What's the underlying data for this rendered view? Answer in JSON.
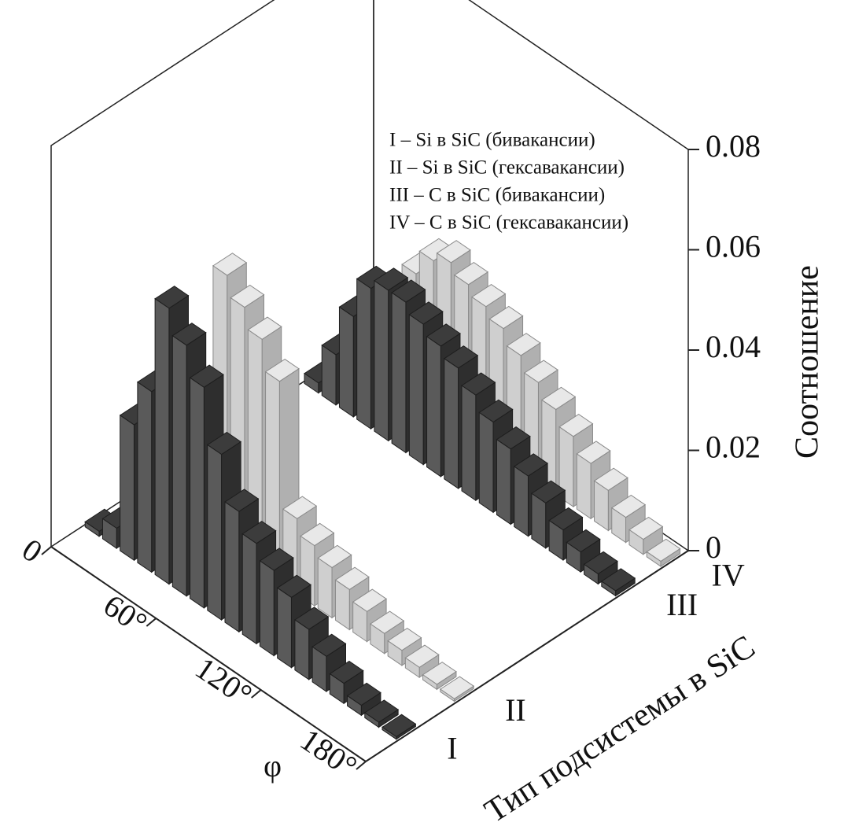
{
  "chart_data": {
    "type": "bar3d",
    "legend": [
      "I – Si в SiC (бивакансии)",
      "II – Si в SiC (гексавакансии)",
      "III – C в SiC (бивакансии)",
      "IV – C в SiC (гексавакансии)"
    ],
    "xlabel": "φ",
    "ylabel": "Тип подсистемы в SiC",
    "zlabel": "Соотношение",
    "x": [
      5,
      15,
      25,
      35,
      45,
      55,
      65,
      75,
      85,
      95,
      105,
      115,
      125,
      135,
      145,
      155,
      165,
      175
    ],
    "xlim": [
      0,
      180
    ],
    "xticks": [
      0,
      {
        "value": 60,
        "label": "60°"
      },
      {
        "value": 120,
        "label": "120°"
      },
      {
        "value": 180,
        "label": "180°"
      }
    ],
    "zlim": [
      0,
      0.08
    ],
    "zticks": [
      0,
      0.02,
      0.04,
      0.06,
      0.08
    ],
    "series": [
      {
        "name": "I",
        "color": "#5a5a5a",
        "values": [
          0.001,
          0.004,
          0.027,
          0.036,
          0.055,
          0.05,
          0.044,
          0.033,
          0.024,
          0.02,
          0.017,
          0.014,
          0.01,
          0.007,
          0.004,
          0.002,
          0.001,
          0.0005
        ]
      },
      {
        "name": "II",
        "color": "#cfcfcf",
        "values": [
          0,
          0,
          0.001,
          0.003,
          0.054,
          0.05,
          0.046,
          0.04,
          0.015,
          0.012,
          0.01,
          0.008,
          0.006,
          0.004,
          0.003,
          0.002,
          0.001,
          0.0005
        ]
      },
      {
        "name": "III",
        "color": "#5a5a5a",
        "values": [
          0.002,
          0.01,
          0.02,
          0.028,
          0.03,
          0.03,
          0.028,
          0.026,
          0.024,
          0.021,
          0.018,
          0.015,
          0.012,
          0.009,
          0.006,
          0.004,
          0.002,
          0.001
        ]
      },
      {
        "name": "IV",
        "color": "#cfcfcf",
        "values": [
          0.001,
          0.005,
          0.015,
          0.025,
          0.03,
          0.032,
          0.03,
          0.028,
          0.026,
          0.023,
          0.02,
          0.017,
          0.014,
          0.011,
          0.008,
          0.005,
          0.003,
          0.001
        ]
      }
    ]
  }
}
